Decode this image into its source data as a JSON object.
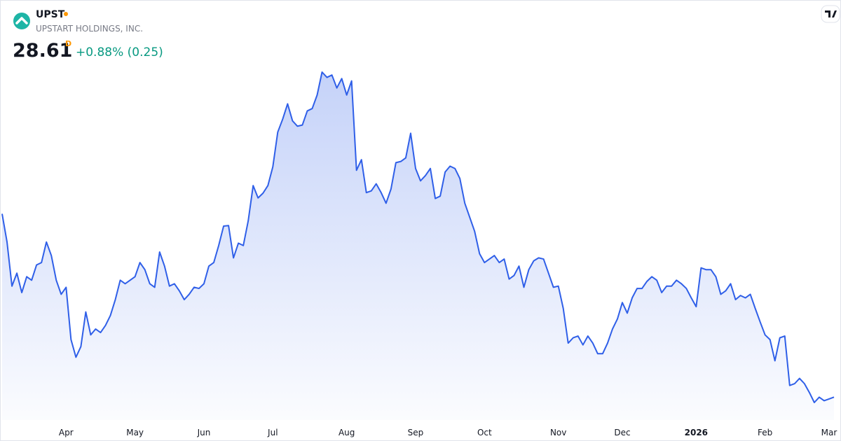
{
  "header": {
    "symbol": "UPST",
    "company": "UPSTART HOLDINGS, INC.",
    "price": "28.61",
    "interval": "D",
    "change": "+0.88% (0.25)"
  },
  "chart_data": {
    "type": "area",
    "color": "#2f5fe8",
    "categories": [
      null,
      null,
      null,
      null,
      null,
      null,
      null,
      null,
      null,
      null,
      null,
      null,
      null,
      "Apr",
      null,
      null,
      null,
      null,
      null,
      null,
      null,
      null,
      null,
      null,
      null,
      null,
      null,
      "May",
      null,
      null,
      null,
      null,
      null,
      null,
      null,
      null,
      null,
      null,
      null,
      null,
      null,
      "Jun",
      null,
      null,
      null,
      null,
      null,
      null,
      null,
      null,
      null,
      null,
      null,
      null,
      null,
      "Jul",
      null,
      null,
      null,
      null,
      null,
      null,
      null,
      null,
      null,
      null,
      null,
      null,
      null,
      null,
      "Aug",
      null,
      null,
      null,
      null,
      null,
      null,
      null,
      null,
      null,
      null,
      null,
      null,
      null,
      "Sep",
      null,
      null,
      null,
      null,
      null,
      null,
      null,
      null,
      null,
      null,
      null,
      null,
      null,
      "Oct",
      null,
      null,
      null,
      null,
      null,
      null,
      null,
      null,
      null,
      null,
      null,
      null,
      null,
      null,
      "Nov",
      null,
      null,
      null,
      null,
      null,
      null,
      null,
      null,
      null,
      null,
      null,
      null,
      "Dec",
      null,
      null,
      null,
      null,
      null,
      null,
      null,
      null,
      null,
      null,
      null,
      null,
      null,
      null,
      "2026",
      null,
      null,
      null,
      null,
      null,
      null,
      null,
      null,
      null,
      null,
      null,
      null,
      null,
      "Feb",
      null,
      null,
      null,
      null,
      null,
      null,
      null,
      null,
      null,
      null,
      null,
      null,
      "Mar",
      null
    ],
    "values": [
      59.8,
      55.0,
      47.5,
      49.7,
      46.4,
      49.1,
      48.5,
      51.1,
      51.5,
      55.0,
      52.7,
      48.5,
      46.1,
      47.3,
      38.4,
      35.4,
      37.2,
      43.1,
      39.2,
      40.2,
      39.6,
      40.8,
      42.5,
      45.2,
      48.5,
      47.9,
      48.5,
      49.1,
      51.5,
      50.3,
      47.9,
      47.3,
      53.3,
      50.9,
      47.5,
      47.9,
      46.7,
      45.2,
      46.1,
      47.3,
      47.1,
      47.9,
      50.9,
      51.5,
      54.4,
      57.7,
      57.8,
      52.3,
      54.8,
      54.4,
      58.6,
      64.6,
      62.5,
      63.3,
      64.6,
      67.8,
      73.7,
      75.9,
      78.5,
      75.6,
      74.7,
      74.9,
      77.3,
      77.7,
      80.0,
      83.9,
      83.0,
      83.4,
      81.2,
      82.8,
      80.0,
      82.4,
      67.2,
      69.0,
      63.4,
      63.7,
      64.9,
      63.4,
      61.6,
      64.0,
      68.5,
      68.7,
      69.3,
      73.5,
      67.5,
      65.4,
      66.3,
      67.5,
      62.4,
      62.8,
      66.9,
      67.9,
      67.5,
      65.8,
      61.6,
      59.2,
      56.8,
      53.0,
      51.5,
      52.1,
      52.7,
      51.5,
      52.1,
      48.7,
      49.3,
      50.9,
      47.3,
      50.3,
      51.8,
      52.3,
      52.1,
      49.7,
      47.3,
      47.5,
      43.7,
      37.8,
      38.7,
      39.0,
      37.5,
      39.0,
      37.8,
      36.0,
      36.0,
      37.8,
      40.2,
      41.9,
      44.7,
      42.9,
      45.5,
      47.1,
      47.1,
      48.3,
      49.1,
      48.5,
      46.4,
      47.5,
      47.5,
      48.5,
      47.9,
      47.1,
      45.5,
      44.0,
      50.6,
      50.3,
      50.3,
      49.1,
      46.1,
      46.7,
      47.9,
      45.2,
      45.9,
      45.5,
      46.1,
      43.7,
      41.4,
      39.2,
      38.4,
      34.8,
      38.7,
      39.0,
      30.6,
      30.9,
      31.8,
      30.9,
      29.4,
      27.7,
      28.6,
      28.0,
      28.3,
      28.61
    ]
  }
}
